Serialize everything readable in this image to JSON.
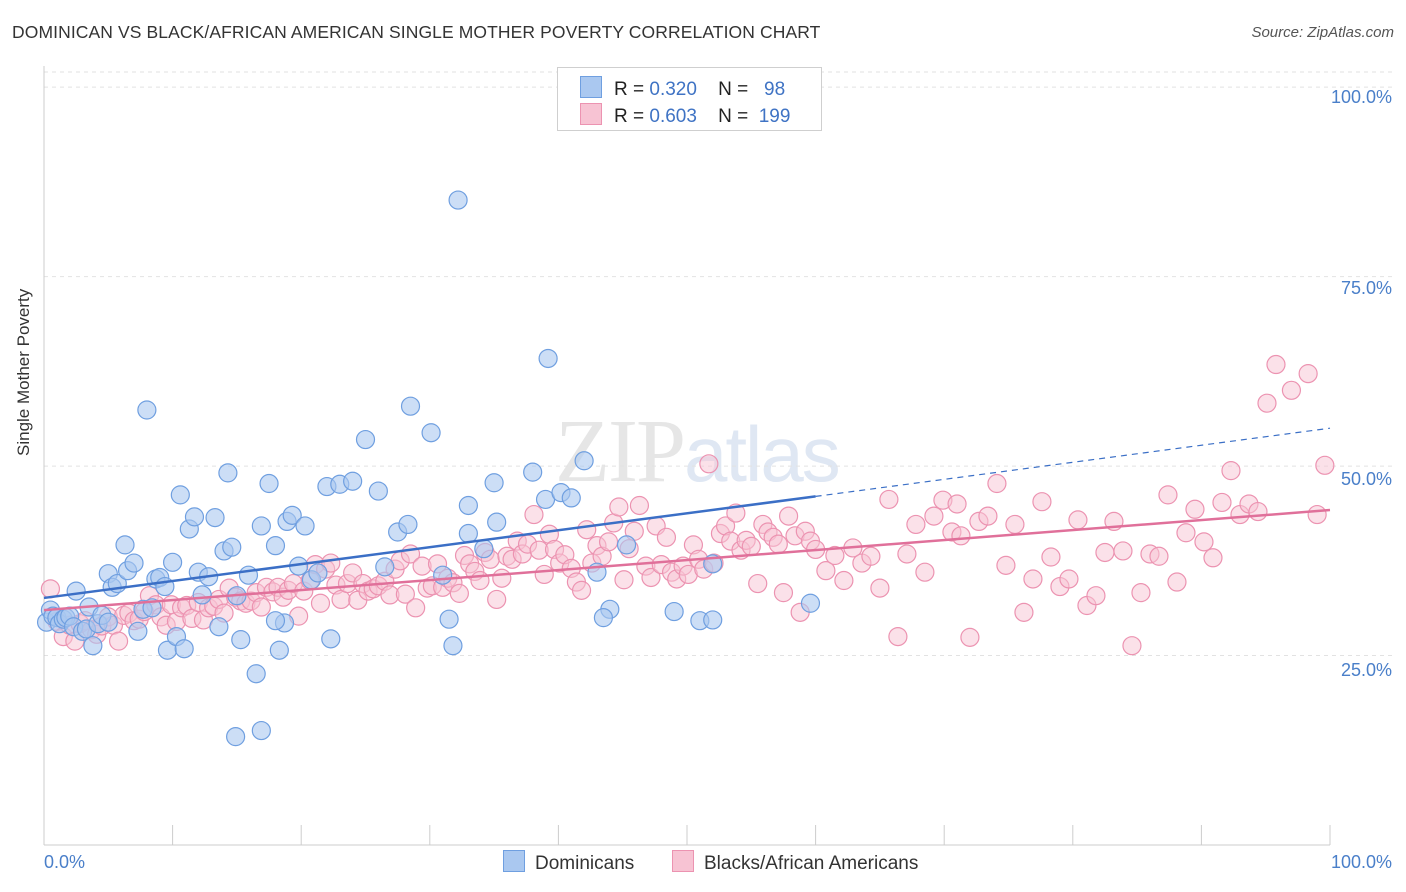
{
  "title": "DOMINICAN VS BLACK/AFRICAN AMERICAN SINGLE MOTHER POVERTY CORRELATION CHART",
  "source": "Source: ZipAtlas.com",
  "watermark": {
    "zip": "ZIP",
    "atlas": "atlas"
  },
  "stats": {
    "row1": {
      "r_label": "R =",
      "r": "0.320",
      "n_label": "N =",
      "n": "98"
    },
    "row2": {
      "r_label": "R =",
      "r": "0.603",
      "n_label": "N =",
      "n": "199"
    }
  },
  "legend": {
    "a": "Dominicans",
    "b": "Blacks/African Americans"
  },
  "colors": {
    "blue_fill": "#aac8f0",
    "blue_stroke": "#6f9fe0",
    "blue_line": "#3b6fc6",
    "pink_fill": "#f7c3d3",
    "pink_stroke": "#ec93b1",
    "pink_line": "#e0709a",
    "tick_text": "#4a7fc9",
    "grid": "#e2e2e2"
  },
  "chart_data": {
    "type": "scatter",
    "title": "DOMINICAN VS BLACK/AFRICAN AMERICAN SINGLE MOTHER POVERTY CORRELATION CHART",
    "xlabel": "",
    "ylabel": "Single Mother Poverty",
    "xlim": [
      0,
      100
    ],
    "ylim": [
      0,
      102
    ],
    "x_tick_labels": [
      "0.0%",
      "100.0%"
    ],
    "y_ticks": [
      25,
      50,
      75,
      100
    ],
    "y_tick_labels": [
      "25.0%",
      "50.0%",
      "75.0%",
      "100.0%"
    ],
    "grid": "horizontal dashed",
    "legend_position": "bottom-center",
    "series": [
      {
        "name": "Dominicans",
        "R": 0.32,
        "N": 98,
        "trend": {
          "x0": 0,
          "y0": 32.6,
          "x1": 60,
          "y1": 46.0,
          "dashed_to_x": 100,
          "dashed_to_y": 55.0
        },
        "points": [
          [
            0.2,
            29.4
          ],
          [
            0.5,
            31.0
          ],
          [
            0.7,
            30.2
          ],
          [
            1.0,
            30.0
          ],
          [
            1.2,
            29.2
          ],
          [
            1.5,
            29.8
          ],
          [
            1.7,
            30.0
          ],
          [
            2.0,
            30.2
          ],
          [
            2.3,
            28.8
          ],
          [
            2.5,
            33.5
          ],
          [
            3.0,
            28.2
          ],
          [
            3.3,
            28.5
          ],
          [
            3.5,
            31.4
          ],
          [
            3.8,
            26.3
          ],
          [
            4.2,
            29.2
          ],
          [
            4.5,
            30.3
          ],
          [
            5.0,
            35.8
          ],
          [
            5.3,
            34.0
          ],
          [
            5.7,
            34.5
          ],
          [
            6.3,
            39.6
          ],
          [
            6.5,
            36.2
          ],
          [
            7.0,
            37.2
          ],
          [
            7.3,
            28.2
          ],
          [
            7.7,
            31.1
          ],
          [
            8.0,
            57.4
          ],
          [
            8.4,
            31.3
          ],
          [
            8.7,
            35.1
          ],
          [
            9.0,
            35.3
          ],
          [
            9.4,
            34.1
          ],
          [
            9.6,
            25.7
          ],
          [
            10.0,
            37.3
          ],
          [
            10.3,
            27.5
          ],
          [
            10.6,
            46.2
          ],
          [
            10.9,
            25.9
          ],
          [
            11.3,
            41.7
          ],
          [
            11.7,
            43.3
          ],
          [
            12.0,
            36.0
          ],
          [
            12.3,
            33.0
          ],
          [
            12.8,
            35.4
          ],
          [
            13.3,
            43.2
          ],
          [
            13.6,
            28.8
          ],
          [
            14.0,
            38.8
          ],
          [
            14.3,
            49.1
          ],
          [
            14.6,
            39.3
          ],
          [
            15.0,
            32.9
          ],
          [
            15.3,
            27.1
          ],
          [
            15.9,
            35.6
          ],
          [
            16.5,
            22.6
          ],
          [
            16.9,
            42.1
          ],
          [
            17.5,
            47.7
          ],
          [
            18.0,
            39.5
          ],
          [
            18.3,
            25.7
          ],
          [
            18.7,
            29.3
          ],
          [
            18.9,
            42.7
          ],
          [
            19.3,
            43.5
          ],
          [
            19.8,
            36.8
          ],
          [
            20.3,
            42.1
          ],
          [
            20.8,
            35.0
          ],
          [
            21.3,
            35.9
          ],
          [
            22.0,
            47.3
          ],
          [
            22.3,
            27.2
          ],
          [
            23.0,
            47.6
          ],
          [
            24.0,
            48.0
          ],
          [
            25.0,
            53.5
          ],
          [
            26.0,
            46.7
          ],
          [
            26.5,
            36.7
          ],
          [
            27.5,
            41.3
          ],
          [
            28.3,
            42.3
          ],
          [
            28.5,
            57.9
          ],
          [
            30.1,
            54.4
          ],
          [
            31.0,
            35.6
          ],
          [
            31.5,
            29.8
          ],
          [
            31.8,
            26.3
          ],
          [
            32.2,
            85.1
          ],
          [
            33.0,
            44.8
          ],
          [
            33.0,
            41.1
          ],
          [
            34.2,
            39.1
          ],
          [
            35.0,
            47.8
          ],
          [
            35.2,
            42.6
          ],
          [
            38.0,
            49.2
          ],
          [
            39.0,
            45.6
          ],
          [
            39.2,
            64.2
          ],
          [
            40.2,
            46.5
          ],
          [
            41.0,
            45.8
          ],
          [
            42.0,
            50.7
          ],
          [
            43.0,
            36.0
          ],
          [
            44.0,
            31.1
          ],
          [
            43.5,
            30.0
          ],
          [
            45.3,
            39.6
          ],
          [
            49.0,
            30.8
          ],
          [
            51.0,
            29.6
          ],
          [
            52.0,
            29.7
          ],
          [
            52.0,
            37.1
          ],
          [
            59.6,
            31.9
          ],
          [
            14.9,
            14.3
          ],
          [
            16.9,
            15.1
          ],
          [
            18.0,
            29.6
          ],
          [
            5.0,
            29.4
          ]
        ]
      },
      {
        "name": "Blacks/African Americans",
        "R": 0.603,
        "N": 199,
        "trend": {
          "x0": 0,
          "y0": 31.0,
          "x1": 100,
          "y1": 44.2
        },
        "points": [
          [
            0.5,
            33.8
          ],
          [
            1.0,
            29.5
          ],
          [
            1.5,
            27.5
          ],
          [
            2.0,
            29.0
          ],
          [
            2.4,
            26.9
          ],
          [
            2.8,
            29.2
          ],
          [
            3.2,
            29.6
          ],
          [
            3.7,
            28.4
          ],
          [
            4.1,
            27.8
          ],
          [
            4.5,
            28.9
          ],
          [
            5.0,
            30.1
          ],
          [
            5.4,
            29.0
          ],
          [
            5.8,
            26.9
          ],
          [
            6.2,
            30.3
          ],
          [
            6.6,
            30.6
          ],
          [
            7.0,
            29.6
          ],
          [
            7.4,
            29.8
          ],
          [
            7.8,
            30.8
          ],
          [
            8.2,
            32.9
          ],
          [
            8.7,
            31.7
          ],
          [
            9.1,
            30.1
          ],
          [
            9.5,
            29.0
          ],
          [
            9.9,
            31.7
          ],
          [
            10.3,
            29.5
          ],
          [
            10.7,
            31.3
          ],
          [
            11.1,
            31.6
          ],
          [
            11.5,
            29.9
          ],
          [
            12.0,
            32.0
          ],
          [
            12.4,
            29.7
          ],
          [
            12.8,
            31.3
          ],
          [
            13.2,
            31.5
          ],
          [
            13.6,
            32.4
          ],
          [
            14.0,
            30.6
          ],
          [
            14.4,
            33.9
          ],
          [
            14.9,
            32.7
          ],
          [
            15.3,
            32.2
          ],
          [
            15.7,
            31.9
          ],
          [
            16.1,
            32.2
          ],
          [
            16.5,
            33.3
          ],
          [
            16.9,
            31.4
          ],
          [
            17.3,
            34.0
          ],
          [
            17.8,
            33.4
          ],
          [
            18.2,
            34.0
          ],
          [
            18.6,
            32.7
          ],
          [
            19.0,
            33.6
          ],
          [
            19.4,
            34.5
          ],
          [
            19.8,
            30.2
          ],
          [
            20.2,
            33.5
          ],
          [
            20.7,
            34.9
          ],
          [
            21.1,
            37.0
          ],
          [
            21.5,
            31.9
          ],
          [
            21.9,
            36.4
          ],
          [
            22.3,
            37.2
          ],
          [
            22.7,
            34.3
          ],
          [
            23.1,
            32.4
          ],
          [
            23.6,
            34.5
          ],
          [
            24.0,
            35.9
          ],
          [
            24.4,
            32.3
          ],
          [
            24.8,
            34.5
          ],
          [
            25.2,
            33.5
          ],
          [
            25.6,
            33.8
          ],
          [
            26.0,
            34.2
          ],
          [
            26.5,
            34.8
          ],
          [
            26.9,
            33.0
          ],
          [
            27.3,
            36.4
          ],
          [
            27.7,
            37.5
          ],
          [
            28.1,
            33.1
          ],
          [
            28.5,
            38.4
          ],
          [
            28.9,
            31.3
          ],
          [
            29.4,
            36.8
          ],
          [
            29.8,
            33.9
          ],
          [
            30.2,
            34.2
          ],
          [
            30.6,
            37.1
          ],
          [
            31.0,
            34.0
          ],
          [
            31.4,
            35.2
          ],
          [
            31.8,
            34.6
          ],
          [
            32.3,
            33.2
          ],
          [
            32.7,
            38.2
          ],
          [
            33.1,
            37.1
          ],
          [
            33.5,
            36.1
          ],
          [
            33.9,
            34.9
          ],
          [
            34.3,
            38.6
          ],
          [
            34.7,
            37.7
          ],
          [
            35.2,
            32.4
          ],
          [
            35.6,
            35.2
          ],
          [
            36.0,
            38.1
          ],
          [
            36.4,
            37.7
          ],
          [
            36.8,
            40.1
          ],
          [
            37.2,
            38.4
          ],
          [
            37.6,
            39.7
          ],
          [
            38.1,
            43.6
          ],
          [
            38.5,
            38.9
          ],
          [
            38.9,
            35.7
          ],
          [
            39.3,
            41.0
          ],
          [
            39.7,
            39.0
          ],
          [
            40.1,
            37.2
          ],
          [
            40.5,
            38.3
          ],
          [
            41.0,
            36.5
          ],
          [
            41.4,
            34.7
          ],
          [
            41.8,
            33.6
          ],
          [
            42.2,
            41.6
          ],
          [
            42.6,
            37.2
          ],
          [
            43.0,
            39.5
          ],
          [
            43.4,
            38.1
          ],
          [
            43.9,
            40.0
          ],
          [
            44.3,
            42.5
          ],
          [
            44.7,
            44.6
          ],
          [
            45.1,
            35.0
          ],
          [
            45.5,
            39.1
          ],
          [
            45.9,
            41.4
          ],
          [
            46.3,
            44.8
          ],
          [
            46.8,
            36.8
          ],
          [
            47.2,
            35.3
          ],
          [
            47.6,
            42.1
          ],
          [
            48.0,
            37.0
          ],
          [
            48.4,
            40.6
          ],
          [
            48.8,
            36.0
          ],
          [
            49.2,
            35.1
          ],
          [
            49.7,
            36.8
          ],
          [
            50.1,
            35.7
          ],
          [
            50.5,
            39.6
          ],
          [
            50.9,
            37.7
          ],
          [
            51.3,
            36.4
          ],
          [
            51.7,
            50.3
          ],
          [
            52.1,
            37.2
          ],
          [
            52.6,
            41.1
          ],
          [
            53.0,
            42.1
          ],
          [
            53.4,
            40.1
          ],
          [
            53.8,
            43.8
          ],
          [
            54.2,
            38.9
          ],
          [
            54.6,
            40.2
          ],
          [
            55.0,
            39.4
          ],
          [
            55.5,
            34.5
          ],
          [
            55.9,
            42.3
          ],
          [
            56.3,
            41.3
          ],
          [
            56.7,
            40.6
          ],
          [
            57.1,
            39.7
          ],
          [
            57.5,
            33.3
          ],
          [
            57.9,
            43.4
          ],
          [
            58.4,
            40.8
          ],
          [
            58.8,
            30.7
          ],
          [
            59.2,
            41.4
          ],
          [
            59.6,
            40.1
          ],
          [
            60.0,
            39.0
          ],
          [
            60.8,
            36.2
          ],
          [
            61.5,
            38.2
          ],
          [
            62.2,
            34.9
          ],
          [
            62.9,
            39.2
          ],
          [
            63.6,
            37.2
          ],
          [
            64.3,
            38.1
          ],
          [
            65.0,
            33.9
          ],
          [
            65.7,
            45.6
          ],
          [
            66.4,
            27.5
          ],
          [
            67.1,
            38.4
          ],
          [
            67.8,
            42.3
          ],
          [
            68.5,
            36.0
          ],
          [
            69.2,
            43.4
          ],
          [
            69.9,
            45.5
          ],
          [
            70.6,
            41.3
          ],
          [
            71.3,
            40.8
          ],
          [
            72.0,
            27.4
          ],
          [
            72.7,
            42.7
          ],
          [
            73.4,
            43.4
          ],
          [
            74.1,
            47.7
          ],
          [
            74.8,
            36.9
          ],
          [
            75.5,
            42.3
          ],
          [
            76.2,
            30.7
          ],
          [
            76.9,
            35.1
          ],
          [
            77.6,
            45.3
          ],
          [
            78.3,
            38.0
          ],
          [
            79.0,
            34.1
          ],
          [
            79.7,
            35.1
          ],
          [
            80.4,
            42.9
          ],
          [
            81.1,
            31.6
          ],
          [
            81.8,
            32.9
          ],
          [
            82.5,
            38.6
          ],
          [
            83.2,
            42.7
          ],
          [
            83.9,
            38.8
          ],
          [
            84.6,
            26.3
          ],
          [
            85.3,
            33.3
          ],
          [
            86.0,
            38.4
          ],
          [
            86.7,
            38.1
          ],
          [
            87.4,
            46.2
          ],
          [
            88.1,
            34.7
          ],
          [
            88.8,
            41.2
          ],
          [
            89.5,
            44.3
          ],
          [
            90.2,
            40.0
          ],
          [
            90.9,
            37.9
          ],
          [
            91.6,
            45.2
          ],
          [
            92.3,
            49.4
          ],
          [
            93.0,
            43.6
          ],
          [
            93.7,
            45.0
          ],
          [
            94.4,
            44.0
          ],
          [
            95.1,
            58.3
          ],
          [
            95.8,
            63.4
          ],
          [
            97.0,
            60.0
          ],
          [
            98.3,
            62.2
          ],
          [
            99.0,
            43.6
          ],
          [
            99.6,
            50.1
          ],
          [
            71.0,
            45.0
          ]
        ]
      }
    ]
  }
}
